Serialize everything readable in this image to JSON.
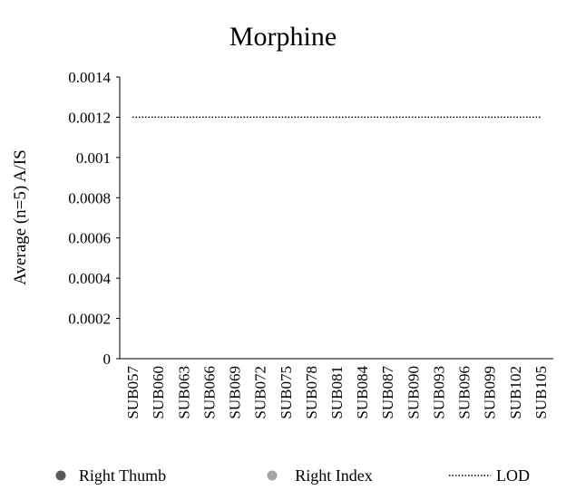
{
  "chart_data": {
    "type": "line",
    "title": "Morphine",
    "y_label": "Average (n=5) A/IS",
    "categories": [
      "SUB057",
      "SUB060",
      "SUB063",
      "SUB066",
      "SUB069",
      "SUB072",
      "SUB075",
      "SUB078",
      "SUB081",
      "SUB084",
      "SUB087",
      "SUB090",
      "SUB093",
      "SUB096",
      "SUB099",
      "SUB102",
      "SUB105"
    ],
    "series": [
      {
        "name": "Right Thumb",
        "color": "#595959",
        "style": "marker",
        "values": [
          null,
          null,
          null,
          null,
          null,
          null,
          null,
          null,
          null,
          null,
          null,
          null,
          null,
          null,
          null,
          null,
          null
        ]
      },
      {
        "name": "Right Index",
        "color": "#a6a6a6",
        "style": "marker",
        "values": [
          null,
          null,
          null,
          null,
          null,
          null,
          null,
          null,
          null,
          null,
          null,
          null,
          null,
          null,
          null,
          null,
          null
        ]
      },
      {
        "name": "LOD",
        "color": "#000000",
        "style": "dotted",
        "values": [
          0.0012,
          0.0012,
          0.0012,
          0.0012,
          0.0012,
          0.0012,
          0.0012,
          0.0012,
          0.0012,
          0.0012,
          0.0012,
          0.0012,
          0.0012,
          0.0012,
          0.0012,
          0.0012,
          0.0012
        ]
      }
    ],
    "ylim": [
      0,
      0.0014
    ],
    "yticks": [
      0,
      0.0002,
      0.0004,
      0.0006,
      0.0008,
      0.001,
      0.0012,
      0.0014
    ],
    "grid": false,
    "legend": "bottom"
  }
}
